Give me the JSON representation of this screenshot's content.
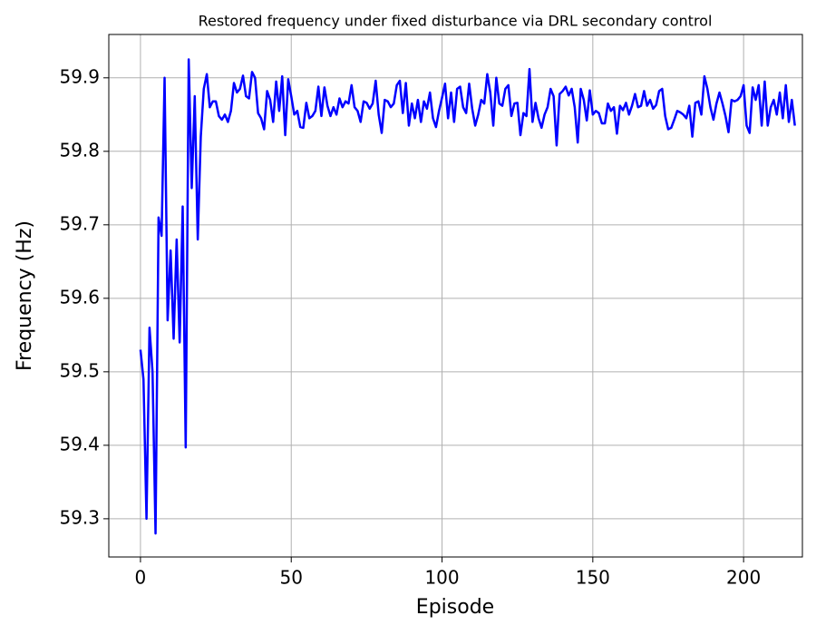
{
  "chart_data": {
    "type": "line",
    "title": "Restored frequency under fixed disturbance via DRL secondary control",
    "x_label": "Episode",
    "y_label": "Frequency (Hz)",
    "color": "#0000ff",
    "grid": true,
    "xlim": [
      -10.5,
      219.5
    ],
    "xticks": [
      0,
      50,
      100,
      150,
      200
    ],
    "ylim": [
      59.248,
      59.959
    ],
    "yticks": [
      59.3,
      59.4,
      59.5,
      59.6,
      59.7,
      59.8,
      59.9
    ],
    "values": [
      59.53,
      59.49,
      59.3,
      59.56,
      59.5,
      59.28,
      59.71,
      59.685,
      59.9,
      59.57,
      59.665,
      59.545,
      59.68,
      59.54,
      59.725,
      59.397,
      59.925,
      59.75,
      59.875,
      59.68,
      59.82,
      59.885,
      59.905,
      59.86,
      59.868,
      59.868,
      59.848,
      59.843,
      59.85,
      59.84,
      59.855,
      59.893,
      59.88,
      59.885,
      59.903,
      59.875,
      59.872,
      59.908,
      59.9,
      59.852,
      59.845,
      59.83,
      59.882,
      59.87,
      59.84,
      59.895,
      59.855,
      59.902,
      59.822,
      59.898,
      59.875,
      59.85,
      59.855,
      59.833,
      59.832,
      59.866,
      59.845,
      59.848,
      59.855,
      59.888,
      59.848,
      59.887,
      59.862,
      59.848,
      59.86,
      59.85,
      59.872,
      59.86,
      59.868,
      59.865,
      59.89,
      59.86,
      59.855,
      59.84,
      59.868,
      59.866,
      59.858,
      59.865,
      59.896,
      59.85,
      59.825,
      59.87,
      59.868,
      59.86,
      59.865,
      59.89,
      59.896,
      59.852,
      59.893,
      59.835,
      59.865,
      59.845,
      59.87,
      59.84,
      59.868,
      59.858,
      59.88,
      59.845,
      59.833,
      59.855,
      59.873,
      59.892,
      59.845,
      59.88,
      59.84,
      59.885,
      59.888,
      59.86,
      59.852,
      59.892,
      59.858,
      59.835,
      59.85,
      59.87,
      59.865,
      59.905,
      59.88,
      59.835,
      59.9,
      59.865,
      59.862,
      59.885,
      59.89,
      59.848,
      59.865,
      59.866,
      59.822,
      59.852,
      59.848,
      59.912,
      59.84,
      59.866,
      59.845,
      59.832,
      59.85,
      59.86,
      59.885,
      59.875,
      59.808,
      59.878,
      59.882,
      59.888,
      59.876,
      59.885,
      59.86,
      59.812,
      59.885,
      59.87,
      59.842,
      59.883,
      59.85,
      59.855,
      59.852,
      59.838,
      59.838,
      59.865,
      59.855,
      59.86,
      59.824,
      59.862,
      59.856,
      59.866,
      59.85,
      59.862,
      59.878,
      59.86,
      59.862,
      59.882,
      59.862,
      59.87,
      59.858,
      59.863,
      59.882,
      59.885,
      59.848,
      59.83,
      59.832,
      59.843,
      59.855,
      59.853,
      59.85,
      59.845,
      59.862,
      59.82,
      59.866,
      59.868,
      59.85,
      59.902,
      59.885,
      59.86,
      59.843,
      59.865,
      59.88,
      59.865,
      59.848,
      59.826,
      59.87,
      59.868,
      59.87,
      59.875,
      59.89,
      59.835,
      59.825,
      59.887,
      59.87,
      59.89,
      59.835,
      59.895,
      59.835,
      59.86,
      59.87,
      59.85,
      59.88,
      59.845,
      59.89,
      59.84,
      59.87,
      59.835
    ]
  }
}
